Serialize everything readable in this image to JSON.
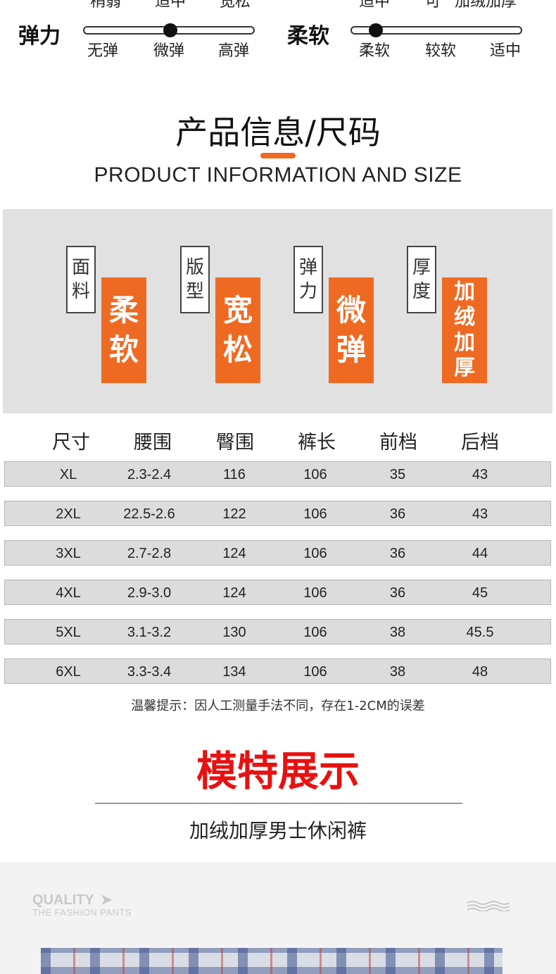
{
  "top_cut": [
    "稍弱",
    "适中",
    "宽松",
    "适中",
    "可",
    "加绒加厚"
  ],
  "elasticity": {
    "label": "弹力",
    "ticks": [
      "无弹",
      "微弹",
      "高弹"
    ],
    "selected_index": 1
  },
  "softness": {
    "label": "柔软",
    "ticks": [
      "柔软",
      "较软",
      "适中"
    ],
    "selected_index": 0
  },
  "heading": {
    "cn": "产品信息/尺码",
    "en": "PRODUCT INFORMATION AND SIZE"
  },
  "attributes": [
    {
      "name": [
        "面",
        "料"
      ],
      "value": [
        "柔",
        "软"
      ]
    },
    {
      "name": [
        "版",
        "型"
      ],
      "value": [
        "宽",
        "松"
      ]
    },
    {
      "name": [
        "弹",
        "力"
      ],
      "value": [
        "微",
        "弹"
      ]
    },
    {
      "name": [
        "厚",
        "度"
      ],
      "value": [
        "加",
        "绒",
        "加",
        "厚"
      ]
    }
  ],
  "size_table": {
    "headers": [
      "尺寸",
      "腰围",
      "臀围",
      "裤长",
      "前档",
      "后档"
    ],
    "rows": [
      [
        "XL",
        "2.3-2.4",
        "116",
        "106",
        "35",
        "43"
      ],
      [
        "2XL",
        "22.5-2.6",
        "122",
        "106",
        "36",
        "43"
      ],
      [
        "3XL",
        "2.7-2.8",
        "124",
        "106",
        "36",
        "44"
      ],
      [
        "4XL",
        "2.9-3.0",
        "124",
        "106",
        "36",
        "45"
      ],
      [
        "5XL",
        "3.1-3.2",
        "130",
        "106",
        "38",
        "45.5"
      ],
      [
        "6XL",
        "3.3-3.4",
        "134",
        "106",
        "38",
        "48"
      ]
    ]
  },
  "note": "温馨提示：因人工测量手法不同，存在1-2CM的误差",
  "model": {
    "title": "模特展示",
    "subtitle": "加绒加厚男士休闲裤"
  },
  "banner": {
    "title": "QUALITY",
    "subtitle": "THE FASHION PANTS",
    "arrow_icon": "arrow-right-icon",
    "wave_icon": "wave-icon"
  },
  "colors": {
    "accent": "#ee6a22",
    "title_red": "#e81111",
    "panel_gray": "#e1e1e1"
  }
}
